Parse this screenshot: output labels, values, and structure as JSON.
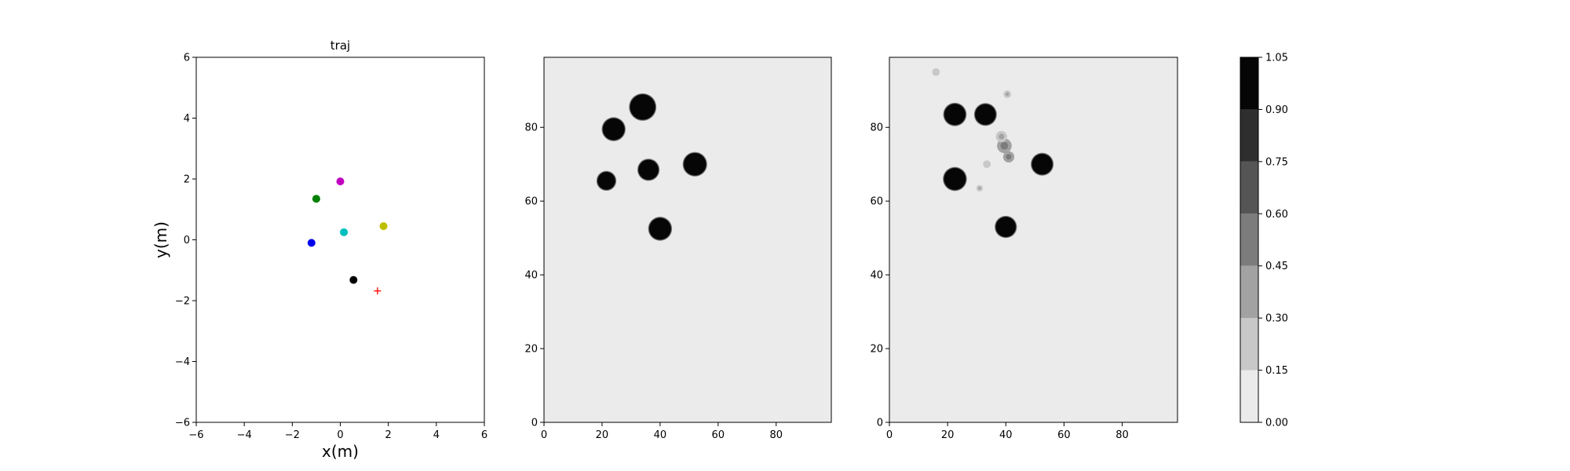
{
  "chart_data": [
    {
      "type": "scatter",
      "title": "traj",
      "xlabel": "x(m)",
      "ylabel": "y(m)",
      "xlim": [
        -6,
        6
      ],
      "ylim": [
        -6,
        6
      ],
      "xticks": [
        -6,
        -4,
        -2,
        0,
        2,
        4,
        6
      ],
      "yticks": [
        -6,
        -4,
        -2,
        0,
        2,
        4,
        6
      ],
      "grid": false,
      "points": [
        {
          "x": -1.2,
          "y": -0.1,
          "color": "#0000ee",
          "marker": "circle"
        },
        {
          "x": -1.0,
          "y": 1.35,
          "color": "#008000",
          "marker": "circle"
        },
        {
          "x": 0.0,
          "y": 1.92,
          "color": "#bf00bf",
          "marker": "circle"
        },
        {
          "x": 0.15,
          "y": 0.25,
          "color": "#00bfbf",
          "marker": "circle"
        },
        {
          "x": 1.8,
          "y": 0.45,
          "color": "#bfbf00",
          "marker": "circle"
        },
        {
          "x": 0.55,
          "y": -1.32,
          "color": "#000000",
          "marker": "circle"
        },
        {
          "x": 1.55,
          "y": -1.68,
          "color": "#ff0000",
          "marker": "plus"
        }
      ]
    },
    {
      "type": "heatmap",
      "title": "",
      "xlabel": "",
      "ylabel": "",
      "xlim": [
        0,
        99
      ],
      "ylim": [
        0,
        99
      ],
      "xticks": [
        0,
        20,
        40,
        60,
        80
      ],
      "yticks": [
        0,
        20,
        40,
        60,
        80
      ],
      "background_value": 0.0,
      "blobs": [
        {
          "x": 34,
          "y": 85.5,
          "r": 4.3,
          "value": 1.0
        },
        {
          "x": 24,
          "y": 79.5,
          "r": 3.7,
          "value": 1.0
        },
        {
          "x": 52,
          "y": 70,
          "r": 3.8,
          "value": 1.0
        },
        {
          "x": 36,
          "y": 68.5,
          "r": 3.4,
          "value": 1.0
        },
        {
          "x": 21.5,
          "y": 65.5,
          "r": 3.0,
          "value": 1.0
        },
        {
          "x": 40,
          "y": 52.5,
          "r": 3.7,
          "value": 1.0
        }
      ]
    },
    {
      "type": "heatmap",
      "title": "",
      "xlabel": "",
      "ylabel": "",
      "xlim": [
        0,
        99
      ],
      "ylim": [
        0,
        99
      ],
      "xticks": [
        0,
        20,
        40,
        60,
        80
      ],
      "yticks": [
        0,
        20,
        40,
        60,
        80
      ],
      "background_value": 0.0,
      "blobs": [
        {
          "x": 22.5,
          "y": 83.5,
          "r": 3.6,
          "value": 1.0
        },
        {
          "x": 33,
          "y": 83.5,
          "r": 3.5,
          "value": 1.0
        },
        {
          "x": 52.5,
          "y": 70,
          "r": 3.5,
          "value": 1.0
        },
        {
          "x": 22.5,
          "y": 66,
          "r": 3.7,
          "value": 1.0
        },
        {
          "x": 40,
          "y": 53,
          "r": 3.4,
          "value": 1.0
        },
        {
          "x": 39.5,
          "y": 75,
          "r": 2.2,
          "value": 0.5
        },
        {
          "x": 41,
          "y": 72,
          "r": 1.6,
          "value": 0.55
        },
        {
          "x": 38.5,
          "y": 77.5,
          "r": 1.6,
          "value": 0.35
        },
        {
          "x": 16,
          "y": 95,
          "r": 1.0,
          "value": 0.25
        },
        {
          "x": 40.5,
          "y": 89,
          "r": 1.0,
          "value": 0.3
        },
        {
          "x": 33.5,
          "y": 70,
          "r": 1.0,
          "value": 0.25
        },
        {
          "x": 31,
          "y": 63.5,
          "r": 0.8,
          "value": 0.35
        }
      ]
    },
    {
      "type": "colorbar",
      "min": 0.0,
      "max": 1.05,
      "levels": [
        0.0,
        0.15,
        0.3,
        0.45,
        0.6,
        0.75,
        0.9,
        1.05
      ],
      "tick_labels": [
        "0.00",
        "0.15",
        "0.30",
        "0.45",
        "0.60",
        "0.75",
        "0.90",
        "1.05"
      ],
      "colors": [
        "#ebebeb",
        "#c8c8c8",
        "#a2a2a2",
        "#7c7c7c",
        "#555555",
        "#2e2e2e",
        "#060606"
      ]
    }
  ]
}
